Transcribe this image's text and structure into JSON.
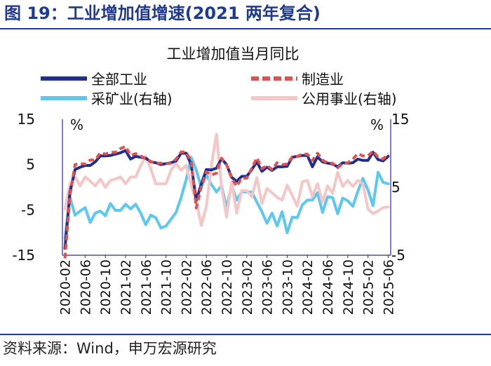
{
  "figure": {
    "title": "图 19：工业增加值增速(2021 两年复合)",
    "source": "资料来源：Wind，申万宏源研究"
  },
  "chart_data": {
    "type": "line",
    "title": "工业增加值当月同比",
    "left_unit": "%",
    "right_unit": "%",
    "left_axis": {
      "ylim": [
        -15,
        15
      ],
      "ticks": [
        "15",
        "5",
        "-5",
        "-15"
      ]
    },
    "right_axis": {
      "ylim": [
        -5,
        15
      ],
      "ticks": [
        "15",
        "5",
        "-5"
      ]
    },
    "x_tick_labels": [
      "2020-02",
      "2020-06",
      "2020-10",
      "2021-02",
      "2021-06",
      "2021-10",
      "2022-02",
      "2022-06",
      "2022-10",
      "2023-02",
      "2023-06",
      "2023-10",
      "2024-02",
      "2024-06",
      "2024-10",
      "2025-02",
      "2025-06"
    ],
    "x": [
      "2020-02",
      "2020-03",
      "2020-04",
      "2020-05",
      "2020-06",
      "2020-07",
      "2020-08",
      "2020-09",
      "2020-10",
      "2020-11",
      "2020-12",
      "2021-01",
      "2021-02",
      "2021-03",
      "2021-04",
      "2021-05",
      "2021-06",
      "2021-07",
      "2021-08",
      "2021-09",
      "2021-10",
      "2021-11",
      "2021-12",
      "2022-01",
      "2022-02",
      "2022-03",
      "2022-04",
      "2022-05",
      "2022-06",
      "2022-07",
      "2022-08",
      "2022-09",
      "2022-10",
      "2022-11",
      "2022-12",
      "2023-01",
      "2023-02",
      "2023-03",
      "2023-04",
      "2023-05",
      "2023-06",
      "2023-07",
      "2023-08",
      "2023-09",
      "2023-10",
      "2023-11",
      "2023-12",
      "2024-01",
      "2024-02",
      "2024-03",
      "2024-04",
      "2024-05",
      "2024-06",
      "2024-07",
      "2024-08",
      "2024-09",
      "2024-10",
      "2024-11",
      "2024-12",
      "2025-01",
      "2025-02",
      "2025-03",
      "2025-04",
      "2025-05",
      "2025-06"
    ],
    "legend_placement": "top",
    "series": [
      {
        "name": "全部工业",
        "axis": "left",
        "color": "#1f2f8f",
        "style": "solid",
        "values": [
          -13.5,
          -1.1,
          3.9,
          4.4,
          4.8,
          4.8,
          5.6,
          6.9,
          6.9,
          7.0,
          7.3,
          7.6,
          8.1,
          6.2,
          6.8,
          6.6,
          6.4,
          5.6,
          5.4,
          5.0,
          5.2,
          5.4,
          5.8,
          7.5,
          7.5,
          5.0,
          -2.9,
          0.7,
          3.9,
          3.8,
          4.2,
          6.3,
          5.0,
          2.2,
          1.3,
          2.4,
          2.4,
          3.9,
          5.6,
          3.5,
          4.4,
          3.7,
          4.5,
          4.5,
          4.6,
          6.6,
          6.8,
          7.0,
          7.0,
          4.5,
          6.7,
          5.6,
          5.3,
          5.1,
          4.5,
          5.4,
          5.3,
          5.4,
          6.2,
          5.9,
          5.9,
          7.7,
          6.1,
          5.8,
          6.8
        ]
      },
      {
        "name": "制造业",
        "axis": "left",
        "color": "#e05252",
        "style": "dashed",
        "values": [
          -15.7,
          -1.8,
          5.0,
          5.2,
          5.1,
          6.0,
          6.0,
          7.6,
          7.3,
          7.7,
          7.7,
          8.5,
          9.0,
          7.0,
          7.4,
          6.9,
          6.3,
          5.7,
          5.3,
          5.3,
          5.2,
          5.3,
          6.2,
          7.8,
          7.8,
          5.6,
          -4.6,
          0.1,
          3.4,
          2.7,
          3.1,
          6.4,
          5.0,
          2.0,
          0.2,
          2.0,
          2.0,
          4.2,
          6.5,
          4.1,
          4.8,
          3.9,
          5.4,
          5.0,
          5.1,
          6.7,
          6.8,
          7.3,
          7.3,
          5.9,
          7.5,
          6.0,
          5.3,
          5.3,
          4.3,
          5.2,
          5.4,
          6.2,
          7.4,
          6.9,
          6.9,
          8.0,
          6.6,
          6.2,
          7.4
        ]
      },
      {
        "name": "采矿业(右轴)",
        "axis": "right",
        "color": "#5cc8f0",
        "style": "solid",
        "values": [
          -2.5,
          3.5,
          0.9,
          1.5,
          2.0,
          -0.2,
          1.2,
          1.5,
          0.8,
          2.6,
          1.6,
          1.6,
          2.5,
          1.8,
          2.5,
          1.2,
          -0.5,
          0.9,
          0.5,
          -1.0,
          -0.7,
          0.3,
          1.3,
          3.5,
          6.1,
          9.4,
          7.5,
          5.0,
          6.8,
          5.4,
          4.3,
          5.2,
          2.0,
          5.3,
          3.1,
          4.3,
          4.3,
          4.3,
          2.8,
          1.4,
          -0.3,
          1.2,
          -0.7,
          1.4,
          -1.7,
          0.6,
          0.5,
          2.4,
          3.1,
          3.1,
          4.2,
          1.3,
          3.6,
          3.5,
          1.1,
          3.4,
          3.0,
          2.2,
          4.4,
          6.3,
          4.6,
          2.3,
          7.2,
          5.7,
          5.5
        ]
      },
      {
        "name": "公用事业(右轴)",
        "axis": "right",
        "color": "#f5c6c6",
        "style": "solid",
        "values": [
          1.8,
          5.5,
          6.5,
          5.2,
          6.5,
          5.9,
          5.2,
          6.2,
          5.0,
          6.0,
          6.2,
          6.5,
          5.5,
          6.5,
          6.5,
          8.2,
          9.5,
          7.7,
          5.5,
          5.5,
          5.5,
          7.5,
          8.5,
          7.5,
          8.2,
          5.3,
          2.9,
          -0.6,
          2.2,
          8.2,
          12.8,
          5.0,
          0.6,
          5.8,
          1.2,
          4.5,
          4.5,
          3.6,
          6.4,
          2.6,
          4.8,
          4.2,
          3.5,
          3.1,
          5.3,
          3.8,
          2.2,
          5.8,
          6.0,
          3.6,
          5.5,
          2.8,
          5.2,
          4.1,
          7.2,
          5.1,
          6.0,
          5.1,
          6.0,
          5.5,
          1.8,
          1.1,
          1.5,
          2.0,
          2.1
        ]
      }
    ]
  }
}
